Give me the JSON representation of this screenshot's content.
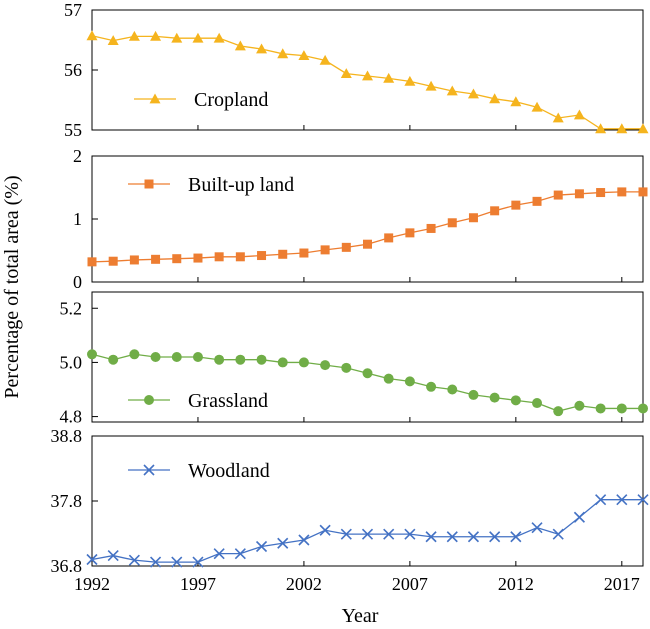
{
  "figure": {
    "xlabel": "Year",
    "ylabel": "Percentage of total area (%)"
  },
  "chart_data": [
    {
      "type": "line",
      "x": [
        1992,
        1993,
        1994,
        1995,
        1996,
        1997,
        1998,
        1999,
        2000,
        2001,
        2002,
        2003,
        2004,
        2005,
        2006,
        2007,
        2008,
        2009,
        2010,
        2011,
        2012,
        2013,
        2014,
        2015,
        2016,
        2017,
        2018
      ],
      "series": [
        {
          "name": "Cropland",
          "color": "#F5B41E",
          "marker": "triangle",
          "values": [
            56.57,
            56.49,
            56.56,
            56.56,
            56.53,
            56.53,
            56.53,
            56.4,
            56.35,
            56.27,
            56.24,
            56.16,
            55.94,
            55.9,
            55.86,
            55.81,
            55.73,
            55.65,
            55.6,
            55.52,
            55.47,
            55.38,
            55.2,
            55.25,
            55.02,
            55.02,
            55.02
          ]
        }
      ],
      "yticks": [
        55,
        56,
        57
      ],
      "ylim": [
        55,
        57
      ],
      "xticks": [
        1992,
        1997,
        2002,
        2007,
        2012,
        2017
      ],
      "legend_position": "middle-left"
    },
    {
      "type": "line",
      "x": [
        1992,
        1993,
        1994,
        1995,
        1996,
        1997,
        1998,
        1999,
        2000,
        2001,
        2002,
        2003,
        2004,
        2005,
        2006,
        2007,
        2008,
        2009,
        2010,
        2011,
        2012,
        2013,
        2014,
        2015,
        2016,
        2017,
        2018
      ],
      "series": [
        {
          "name": "Built-up land",
          "color": "#ED7D31",
          "marker": "square",
          "values": [
            0.32,
            0.33,
            0.35,
            0.36,
            0.37,
            0.38,
            0.4,
            0.4,
            0.42,
            0.44,
            0.46,
            0.51,
            0.55,
            0.6,
            0.7,
            0.78,
            0.85,
            0.94,
            1.02,
            1.13,
            1.22,
            1.28,
            1.38,
            1.4,
            1.42,
            1.43,
            1.43
          ]
        }
      ],
      "yticks": [
        0,
        1,
        2
      ],
      "ylim": [
        0,
        2
      ],
      "xticks": [
        1992,
        1997,
        2002,
        2007,
        2012,
        2017
      ],
      "legend_position": "top-left"
    },
    {
      "type": "line",
      "x": [
        1992,
        1993,
        1994,
        1995,
        1996,
        1997,
        1998,
        1999,
        2000,
        2001,
        2002,
        2003,
        2004,
        2005,
        2006,
        2007,
        2008,
        2009,
        2010,
        2011,
        2012,
        2013,
        2014,
        2015,
        2016,
        2017,
        2018
      ],
      "series": [
        {
          "name": "Grassland",
          "color": "#70AD47",
          "marker": "circle",
          "values": [
            5.03,
            5.01,
            5.03,
            5.02,
            5.02,
            5.02,
            5.01,
            5.01,
            5.01,
            5.0,
            5.0,
            4.99,
            4.98,
            4.96,
            4.94,
            4.93,
            4.91,
            4.9,
            4.88,
            4.87,
            4.86,
            4.85,
            4.82,
            4.84,
            4.83,
            4.83,
            4.83
          ]
        }
      ],
      "yticks": [
        4.8,
        5.0,
        5.2
      ],
      "ylim": [
        4.78,
        5.26
      ],
      "xticks": [
        1992,
        1997,
        2002,
        2007,
        2012,
        2017
      ],
      "legend_position": "bottom-left"
    },
    {
      "type": "line",
      "x": [
        1992,
        1993,
        1994,
        1995,
        1996,
        1997,
        1998,
        1999,
        2000,
        2001,
        2002,
        2003,
        2004,
        2005,
        2006,
        2007,
        2008,
        2009,
        2010,
        2011,
        2012,
        2013,
        2014,
        2015,
        2016,
        2017,
        2018
      ],
      "series": [
        {
          "name": "Woodland",
          "color": "#4472C4",
          "marker": "x",
          "values": [
            36.9,
            36.96,
            36.89,
            36.86,
            36.86,
            36.86,
            36.99,
            36.99,
            37.1,
            37.15,
            37.2,
            37.35,
            37.29,
            37.29,
            37.29,
            37.29,
            37.25,
            37.25,
            37.25,
            37.25,
            37.25,
            37.39,
            37.29,
            37.55,
            37.82,
            37.82,
            37.82
          ]
        }
      ],
      "yticks": [
        36.8,
        37.8,
        38.8
      ],
      "ylim": [
        36.8,
        38.8
      ],
      "xticks": [
        1992,
        1997,
        2002,
        2007,
        2012,
        2017
      ],
      "xticklabels": [
        "1992",
        "1997",
        "2002",
        "2007",
        "2012",
        "2017"
      ],
      "legend_position": "top-left"
    }
  ]
}
